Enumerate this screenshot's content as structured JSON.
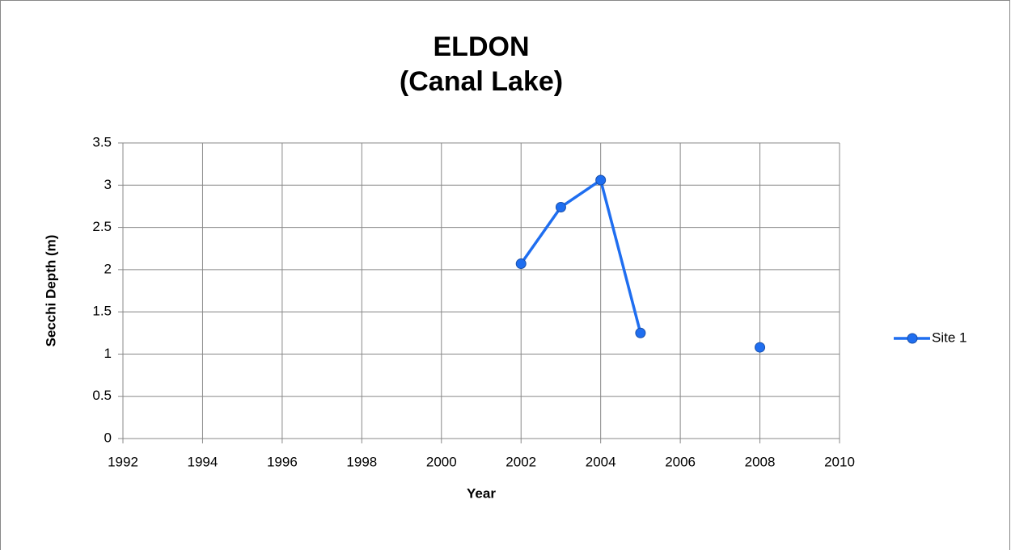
{
  "chart_data": {
    "type": "line",
    "title": "ELDON",
    "subtitle": "(Canal Lake)",
    "x_label": "Year",
    "y_label": "Secchi Depth (m)",
    "x": [
      2002,
      2003,
      2004,
      2005,
      2006,
      2007,
      2008
    ],
    "series": [
      {
        "name": "Site 1",
        "color": "#1f6ef0",
        "values": [
          2.07,
          2.74,
          3.06,
          1.25,
          null,
          null,
          1.08
        ]
      }
    ],
    "xlim": [
      1992,
      2010
    ],
    "xticks": [
      1992,
      1994,
      1996,
      1998,
      2000,
      2002,
      2004,
      2006,
      2008,
      2010
    ],
    "ylim": [
      0,
      3.5
    ],
    "yticks": [
      0,
      0.5,
      1,
      1.5,
      2,
      2.5,
      3,
      3.5
    ],
    "grid": true,
    "legend": "right"
  }
}
